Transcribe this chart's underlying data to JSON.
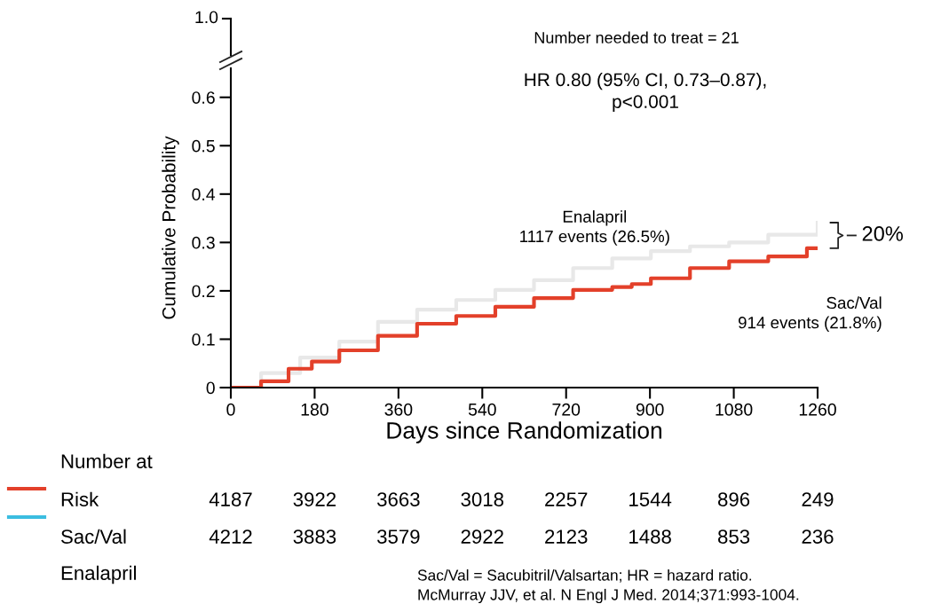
{
  "chart_data": {
    "type": "step",
    "ylabel": "Cumulative Probability",
    "xlabel": "Days since Randomization",
    "xlim": [
      0,
      1260
    ],
    "xticks": [
      0,
      180,
      360,
      540,
      720,
      900,
      1080,
      1260
    ],
    "ylim": [
      0,
      0.66
    ],
    "yticks": [
      {
        "value": 0,
        "label": "0"
      },
      0.1,
      0.2,
      0.3,
      0.4,
      0.5,
      0.6
    ],
    "series": [
      {
        "color": "#e8e8e8",
        "x": [
          0,
          65,
          149,
          233,
          316,
          400,
          484,
          568,
          651,
          735,
          819,
          902,
          986,
          1070,
          1154,
          1260
        ],
        "values": [
          0,
          0.03,
          0.062,
          0.095,
          0.136,
          0.161,
          0.181,
          0.202,
          0.222,
          0.247,
          0.267,
          0.282,
          0.292,
          0.3,
          0.316,
          0.341
        ]
      },
      {
        "color": "#e3402a",
        "x": [
          0,
          65,
          124,
          174,
          233,
          316,
          400,
          484,
          568,
          651,
          735,
          819,
          861,
          902,
          986,
          1070,
          1154,
          1237,
          1260
        ],
        "values": [
          0,
          0.013,
          0.039,
          0.054,
          0.077,
          0.107,
          0.132,
          0.148,
          0.167,
          0.185,
          0.202,
          0.208,
          0.214,
          0.226,
          0.247,
          0.261,
          0.271,
          0.288,
          0.288
        ]
      }
    ],
    "annotations": [
      "1.0",
      "Number needed to treat = 21",
      "HR 0.80 (95% CI, 0.73–0.87),\np<0.001",
      "Enalapril\n1117 events (26.5%)",
      "Sac/Val\n914 events (21.8%)",
      "20%",
      "Number at",
      "Risk",
      "Sac/Val",
      "Enalapril",
      "4187 3922 3663 3018 2257 1544 896 249",
      "4212 3883 3579 2922 2123 1488 853 236",
      "Sac/Val = Sacubitril/Valsartan; HR = hazard ratio.",
      "McMurray JJV, et al. N Engl J Med. 2014;371:993-1004."
    ]
  }
}
